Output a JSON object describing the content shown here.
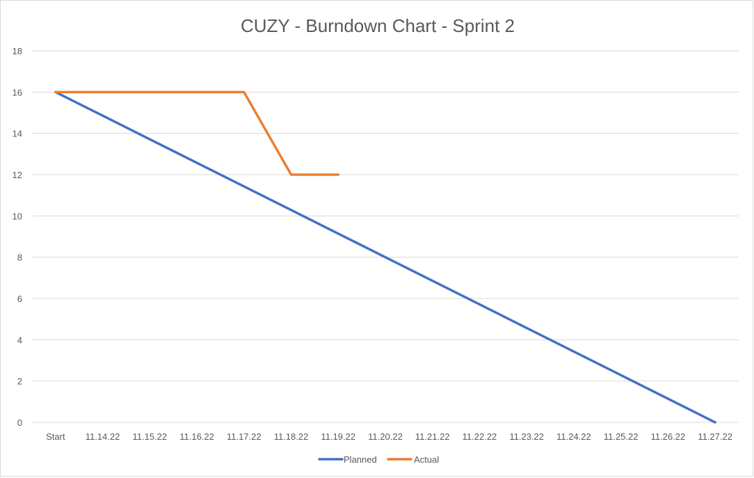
{
  "chart_data": {
    "type": "line",
    "title": "CUZY - Burndown Chart - Sprint 2",
    "xlabel": "",
    "ylabel": "",
    "categories": [
      "Start",
      "11.14.22",
      "11.15.22",
      "11.16.22",
      "11.17.22",
      "11.18.22",
      "11.19.22",
      "11.20.22",
      "11.21.22",
      "11.22.22",
      "11.23.22",
      "11.24.22",
      "11.25.22",
      "11.26.22",
      "11.27.22"
    ],
    "series": [
      {
        "name": "Planned",
        "color": "#4472C4",
        "values": [
          16,
          14.857,
          13.714,
          12.571,
          11.429,
          10.286,
          9.143,
          8,
          6.857,
          5.714,
          4.571,
          3.429,
          2.286,
          1.143,
          0
        ]
      },
      {
        "name": "Actual",
        "color": "#ED7D31",
        "values": [
          16,
          16,
          16,
          16,
          16,
          12,
          12,
          null,
          null,
          null,
          null,
          null,
          null,
          null,
          null
        ]
      }
    ],
    "ylim": [
      0,
      18
    ],
    "yticks": [
      0,
      2,
      4,
      6,
      8,
      10,
      12,
      14,
      16,
      18
    ],
    "grid": true,
    "legend_position": "bottom"
  }
}
